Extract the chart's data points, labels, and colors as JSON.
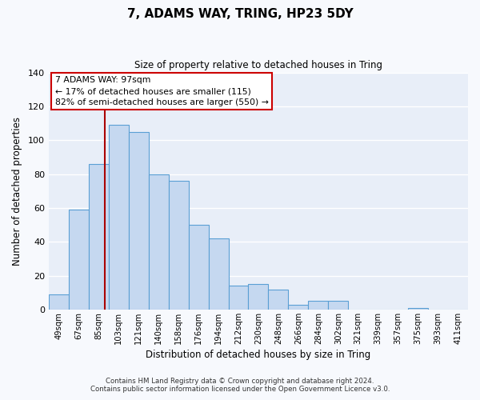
{
  "title": "7, ADAMS WAY, TRING, HP23 5DY",
  "subtitle": "Size of property relative to detached houses in Tring",
  "xlabel": "Distribution of detached houses by size in Tring",
  "ylabel": "Number of detached properties",
  "categories": [
    "49sqm",
    "67sqm",
    "85sqm",
    "103sqm",
    "121sqm",
    "140sqm",
    "158sqm",
    "176sqm",
    "194sqm",
    "212sqm",
    "230sqm",
    "248sqm",
    "266sqm",
    "284sqm",
    "302sqm",
    "321sqm",
    "339sqm",
    "357sqm",
    "375sqm",
    "393sqm",
    "411sqm"
  ],
  "values": [
    9,
    59,
    86,
    109,
    105,
    80,
    76,
    50,
    42,
    14,
    15,
    12,
    3,
    5,
    5,
    0,
    0,
    0,
    1,
    0,
    0
  ],
  "bar_color": "#c5d8f0",
  "bar_edge_color": "#5a9fd4",
  "ylim": [
    0,
    140
  ],
  "yticks": [
    0,
    20,
    40,
    60,
    80,
    100,
    120,
    140
  ],
  "vline_x": 2.3,
  "vline_color": "#aa0000",
  "annotation_box_text": "7 ADAMS WAY: 97sqm\n← 17% of detached houses are smaller (115)\n82% of semi-detached houses are larger (550) →",
  "footer_line1": "Contains HM Land Registry data © Crown copyright and database right 2024.",
  "footer_line2": "Contains public sector information licensed under the Open Government Licence v3.0.",
  "background_color": "#f7f9fd",
  "plot_bg_color": "#e8eef8"
}
